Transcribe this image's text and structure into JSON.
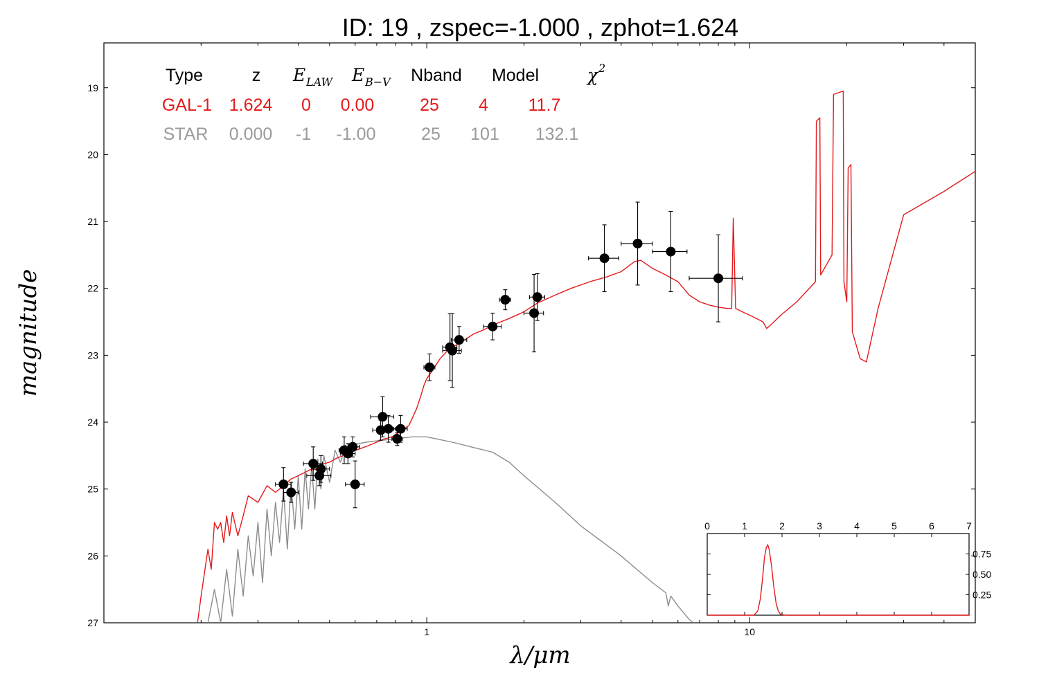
{
  "title": "ID:  19    , zspec=-1.000 , zphot=1.624",
  "colors": {
    "galaxy": "#e31a1c",
    "star": "#8c8c8c",
    "points": "#000000"
  },
  "legend_table": {
    "headers": {
      "type": "Type",
      "z": "z",
      "e_law": "E",
      "e_law_sub": "LAW",
      "e_bv": "E",
      "e_bv_sub": "B−V",
      "nband": "Nband",
      "model": "Model",
      "chi2": "χ",
      "chi2_sup": "2"
    },
    "rows": [
      {
        "type": "GAL-1",
        "z": "1.624",
        "e_law": "0",
        "e_bv": "0.00",
        "nband": "25",
        "model": "4",
        "chi2": "11.7",
        "color": "#e31a1c"
      },
      {
        "type": "STAR",
        "z": "0.000",
        "e_law": "-1",
        "e_bv": "-1.00",
        "nband": "25",
        "model": "101",
        "chi2": "132.1",
        "color": "#9a9a9a"
      }
    ]
  },
  "chart_data": [
    {
      "type": "scatter",
      "xlabel": "λ/μm",
      "ylabel": "magnitude",
      "xscale": "log",
      "xlim": [
        0.1,
        50
      ],
      "ylim": [
        27,
        18.3
      ],
      "y_inverted": true,
      "xticks": [
        {
          "value": 1,
          "label": "1"
        },
        {
          "value": 10,
          "label": "10"
        }
      ],
      "yticks": [
        19,
        20,
        21,
        22,
        23,
        24,
        25,
        26,
        27
      ],
      "photometry": [
        {
          "x": 0.36,
          "y": 24.93,
          "xerr": 0.02,
          "yerr": 0.25
        },
        {
          "x": 0.38,
          "y": 25.05,
          "xerr": 0.02,
          "yerr": 0.15
        },
        {
          "x": 0.445,
          "y": 24.62,
          "xerr": 0.03,
          "yerr": 0.25
        },
        {
          "x": 0.465,
          "y": 24.8,
          "xerr": 0.04,
          "yerr": 0.15
        },
        {
          "x": 0.47,
          "y": 24.7,
          "xerr": 0.03,
          "yerr": 0.2
        },
        {
          "x": 0.555,
          "y": 24.42,
          "xerr": 0.02,
          "yerr": 0.2
        },
        {
          "x": 0.57,
          "y": 24.47,
          "xerr": 0.03,
          "yerr": 0.15
        },
        {
          "x": 0.59,
          "y": 24.37,
          "xerr": 0.03,
          "yerr": 0.15
        },
        {
          "x": 0.6,
          "y": 24.93,
          "xerr": 0.04,
          "yerr": 0.35
        },
        {
          "x": 0.72,
          "y": 24.12,
          "xerr": 0.04,
          "yerr": 0.15
        },
        {
          "x": 0.73,
          "y": 23.92,
          "xerr": 0.06,
          "yerr": 0.3
        },
        {
          "x": 0.76,
          "y": 24.1,
          "xerr": 0.04,
          "yerr": 0.2
        },
        {
          "x": 0.81,
          "y": 24.25,
          "xerr": 0.03,
          "yerr": 0.1
        },
        {
          "x": 0.83,
          "y": 24.1,
          "xerr": 0.04,
          "yerr": 0.2
        },
        {
          "x": 1.02,
          "y": 23.18,
          "xerr": 0.04,
          "yerr": 0.2
        },
        {
          "x": 1.18,
          "y": 22.88,
          "xerr": 0.06,
          "yerr": 0.5
        },
        {
          "x": 1.2,
          "y": 22.93,
          "xerr": 0.08,
          "yerr": 0.55
        },
        {
          "x": 1.26,
          "y": 22.77,
          "xerr": 0.07,
          "yerr": 0.2
        },
        {
          "x": 1.6,
          "y": 22.57,
          "xerr": 0.1,
          "yerr": 0.2
        },
        {
          "x": 1.75,
          "y": 22.17,
          "xerr": 0.07,
          "yerr": 0.15
        },
        {
          "x": 2.15,
          "y": 22.37,
          "xerr": 0.15,
          "yerr": 0.58
        },
        {
          "x": 2.2,
          "y": 22.13,
          "xerr": 0.12,
          "yerr": 0.35
        },
        {
          "x": 3.55,
          "y": 21.55,
          "xerr": 0.38,
          "yerr": 0.5
        },
        {
          "x": 4.5,
          "y": 21.33,
          "xerr": 0.5,
          "yerr": 0.62
        },
        {
          "x": 5.7,
          "y": 21.45,
          "xerr": 0.7,
          "yerr": 0.6
        },
        {
          "x": 8.0,
          "y": 21.85,
          "xerr": 1.5,
          "yerr": 0.65
        }
      ],
      "series": [
        {
          "label_ref": "GAL-1",
          "color": "#e31a1c",
          "points": [
            [
              0.195,
              27.0
            ],
            [
              0.2,
              26.6
            ],
            [
              0.21,
              25.9
            ],
            [
              0.215,
              26.2
            ],
            [
              0.22,
              25.5
            ],
            [
              0.225,
              25.6
            ],
            [
              0.23,
              25.5
            ],
            [
              0.235,
              25.8
            ],
            [
              0.24,
              25.4
            ],
            [
              0.245,
              25.7
            ],
            [
              0.25,
              25.35
            ],
            [
              0.26,
              25.7
            ],
            [
              0.27,
              25.4
            ],
            [
              0.28,
              25.1
            ],
            [
              0.3,
              25.2
            ],
            [
              0.32,
              24.95
            ],
            [
              0.34,
              25.05
            ],
            [
              0.36,
              24.95
            ],
            [
              0.38,
              24.85
            ],
            [
              0.4,
              24.8
            ],
            [
              0.42,
              24.75
            ],
            [
              0.44,
              24.7
            ],
            [
              0.46,
              24.72
            ],
            [
              0.48,
              24.62
            ],
            [
              0.5,
              24.6
            ],
            [
              0.52,
              24.55
            ],
            [
              0.55,
              24.5
            ],
            [
              0.58,
              24.45
            ],
            [
              0.62,
              24.4
            ],
            [
              0.66,
              24.35
            ],
            [
              0.7,
              24.3
            ],
            [
              0.74,
              24.25
            ],
            [
              0.78,
              24.22
            ],
            [
              0.82,
              24.15
            ],
            [
              0.85,
              24.1
            ],
            [
              0.88,
              24.05
            ],
            [
              0.9,
              23.95
            ],
            [
              0.93,
              23.8
            ],
            [
              0.96,
              23.6
            ],
            [
              0.98,
              23.45
            ],
            [
              1.0,
              23.35
            ],
            [
              1.05,
              23.2
            ],
            [
              1.1,
              23.05
            ],
            [
              1.15,
              22.95
            ],
            [
              1.2,
              22.88
            ],
            [
              1.3,
              22.78
            ],
            [
              1.4,
              22.68
            ],
            [
              1.5,
              22.62
            ],
            [
              1.6,
              22.55
            ],
            [
              1.8,
              22.45
            ],
            [
              2.0,
              22.35
            ],
            [
              2.2,
              22.22
            ],
            [
              2.5,
              22.1
            ],
            [
              2.8,
              22.0
            ],
            [
              3.2,
              21.9
            ],
            [
              3.6,
              21.83
            ],
            [
              4.0,
              21.75
            ],
            [
              4.4,
              21.6
            ],
            [
              4.6,
              21.58
            ],
            [
              5.0,
              21.7
            ],
            [
              5.5,
              21.8
            ],
            [
              6.0,
              21.9
            ],
            [
              6.5,
              22.1
            ],
            [
              7.0,
              22.2
            ],
            [
              7.5,
              22.25
            ],
            [
              8.0,
              22.28
            ],
            [
              8.5,
              22.3
            ],
            [
              8.8,
              22.3
            ],
            [
              8.9,
              20.95
            ],
            [
              9.05,
              22.3
            ],
            [
              9.5,
              22.35
            ],
            [
              10.0,
              22.4
            ],
            [
              10.5,
              22.45
            ],
            [
              11.0,
              22.5
            ],
            [
              11.3,
              22.6
            ],
            [
              11.6,
              22.55
            ],
            [
              12.5,
              22.4
            ],
            [
              14.0,
              22.2
            ],
            [
              16.0,
              21.9
            ],
            [
              16.1,
              19.5
            ],
            [
              16.5,
              19.45
            ],
            [
              16.6,
              21.8
            ],
            [
              18.0,
              21.5
            ],
            [
              18.2,
              19.1
            ],
            [
              19.5,
              19.05
            ],
            [
              19.6,
              21.9
            ],
            [
              20.0,
              22.2
            ],
            [
              20.2,
              20.2
            ],
            [
              20.6,
              20.15
            ],
            [
              20.8,
              22.65
            ],
            [
              22.0,
              23.05
            ],
            [
              23.0,
              23.1
            ],
            [
              25.0,
              22.3
            ],
            [
              30.0,
              20.9
            ],
            [
              40.0,
              20.55
            ],
            [
              50.0,
              20.25
            ]
          ]
        },
        {
          "label_ref": "STAR",
          "color": "#8c8c8c",
          "points": [
            [
              0.21,
              27.0
            ],
            [
              0.22,
              26.5
            ],
            [
              0.23,
              27.0
            ],
            [
              0.24,
              26.2
            ],
            [
              0.25,
              26.9
            ],
            [
              0.26,
              25.9
            ],
            [
              0.27,
              26.6
            ],
            [
              0.28,
              25.7
            ],
            [
              0.29,
              26.3
            ],
            [
              0.3,
              25.5
            ],
            [
              0.31,
              26.4
            ],
            [
              0.32,
              25.3
            ],
            [
              0.33,
              26.0
            ],
            [
              0.34,
              25.2
            ],
            [
              0.35,
              25.8
            ],
            [
              0.36,
              25.0
            ],
            [
              0.37,
              25.9
            ],
            [
              0.38,
              24.9
            ],
            [
              0.39,
              25.6
            ],
            [
              0.4,
              24.8
            ],
            [
              0.41,
              25.6
            ],
            [
              0.42,
              24.7
            ],
            [
              0.43,
              25.3
            ],
            [
              0.44,
              24.65
            ],
            [
              0.45,
              25.3
            ],
            [
              0.46,
              24.55
            ],
            [
              0.47,
              25.0
            ],
            [
              0.48,
              24.5
            ],
            [
              0.5,
              24.9
            ],
            [
              0.52,
              24.42
            ],
            [
              0.54,
              24.6
            ],
            [
              0.56,
              24.38
            ],
            [
              0.6,
              24.33
            ],
            [
              0.65,
              24.3
            ],
            [
              0.7,
              24.28
            ],
            [
              0.8,
              24.25
            ],
            [
              0.9,
              24.22
            ],
            [
              1.0,
              24.22
            ],
            [
              1.2,
              24.3
            ],
            [
              1.4,
              24.38
            ],
            [
              1.6,
              24.45
            ],
            [
              1.8,
              24.6
            ],
            [
              2.0,
              24.8
            ],
            [
              2.5,
              25.2
            ],
            [
              3.0,
              25.55
            ],
            [
              4.0,
              26.0
            ],
            [
              5.0,
              26.4
            ],
            [
              5.5,
              26.55
            ],
            [
              5.6,
              26.75
            ],
            [
              5.7,
              26.6
            ],
            [
              6.0,
              26.75
            ],
            [
              6.5,
              26.95
            ],
            [
              6.7,
              27.0
            ]
          ]
        }
      ]
    },
    {
      "type": "line",
      "panel": "inset",
      "xlim": [
        0,
        7
      ],
      "ylim": [
        0,
        1.0
      ],
      "xticks": [
        0,
        1,
        2,
        3,
        4,
        5,
        6,
        7
      ],
      "yticks": [
        0.25,
        0.5,
        0.75
      ],
      "ytick_labels": [
        "0.25",
        "0.50",
        "0.75"
      ],
      "color": "#e31a1c",
      "points": [
        [
          0,
          0
        ],
        [
          1.0,
          0
        ],
        [
          1.25,
          0.0
        ],
        [
          1.35,
          0.05
        ],
        [
          1.42,
          0.2
        ],
        [
          1.48,
          0.45
        ],
        [
          1.53,
          0.7
        ],
        [
          1.58,
          0.83
        ],
        [
          1.62,
          0.86
        ],
        [
          1.66,
          0.8
        ],
        [
          1.72,
          0.6
        ],
        [
          1.78,
          0.35
        ],
        [
          1.84,
          0.15
        ],
        [
          1.9,
          0.05
        ],
        [
          1.96,
          0.01
        ],
        [
          2.1,
          0
        ],
        [
          7.0,
          0
        ]
      ]
    }
  ]
}
